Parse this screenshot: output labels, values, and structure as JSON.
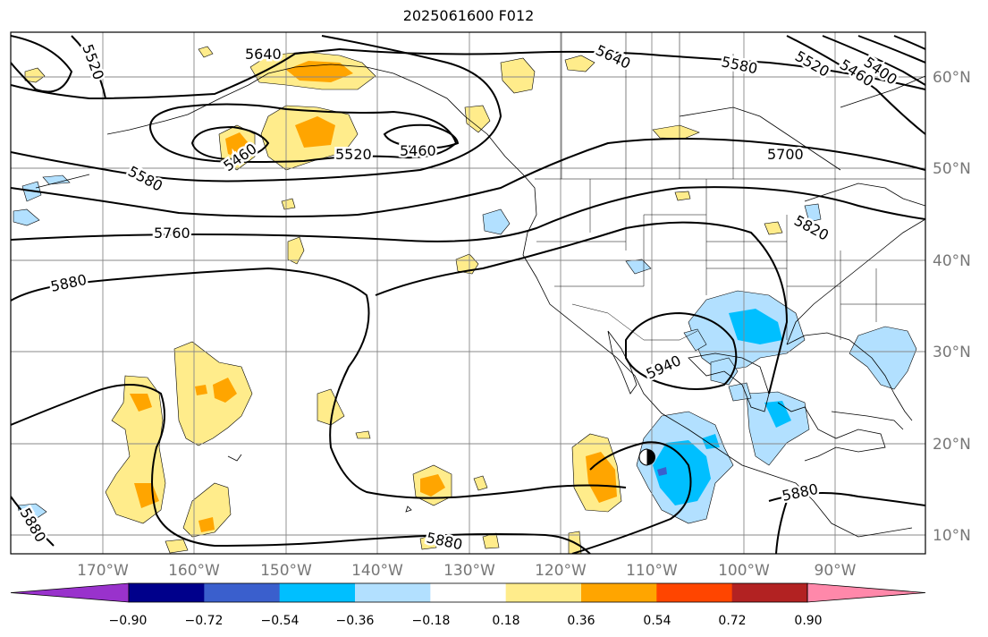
{
  "title": "2025061600 F012",
  "map": {
    "lon_labels": [
      "170°W",
      "160°W",
      "150°W",
      "140°W",
      "130°W",
      "120°W",
      "110°W",
      "100°W",
      "90°W"
    ],
    "lat_labels": [
      "60°N",
      "50°N",
      "40°N",
      "30°N",
      "20°N",
      "10°N"
    ],
    "height_labels": [
      "5640",
      "5520",
      "5460",
      "5520",
      "5460",
      "5580",
      "5760",
      "5880",
      "5640",
      "5580",
      "5520",
      "5460",
      "5400",
      "5700",
      "5820",
      "5940",
      "5880",
      "5880",
      "5880"
    ],
    "storm_marker": "tropical-cyclone-icon"
  },
  "colorbar": {
    "colors": [
      "#9932CC",
      "#00008B",
      "#3A5FCD",
      "#00BFFF",
      "#B2E0FF",
      "#FFFFFF",
      "#FFEC8B",
      "#FFA500",
      "#FF4500",
      "#B22222",
      "#FF88AA"
    ],
    "ticks": [
      "−0.90",
      "−0.72",
      "−0.54",
      "−0.36",
      "−0.18",
      "0.18",
      "0.36",
      "0.54",
      "0.72",
      "0.90"
    ]
  }
}
